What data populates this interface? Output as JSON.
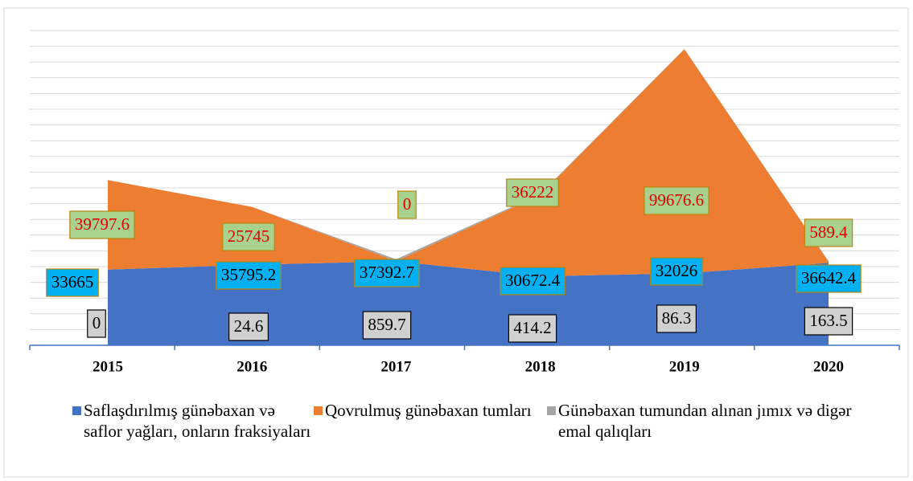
{
  "chart_data": {
    "type": "stacked_area",
    "categories": [
      "2015",
      "2016",
      "2017",
      "2018",
      "2019",
      "2020"
    ],
    "series": [
      {
        "name": "Saflaşdırılmış günəbaxan və saflor yağları, onların fraksiyaları",
        "color": "#4472c4",
        "values": [
          33665,
          35795.2,
          37392.7,
          30672.4,
          32026,
          36642.4
        ]
      },
      {
        "name": "Qovrulmuş günəbaxan tumları",
        "color": "#ed7d31",
        "values": [
          39797.6,
          25745,
          0,
          36222,
          99676.6,
          589.4
        ]
      },
      {
        "name": "Günəbaxan tumundan alınan jımıx və digər emal qalıqları",
        "color": "#a5a5a5",
        "values": [
          0,
          24.6,
          859.7,
          414.2,
          86.3,
          163.5
        ]
      }
    ],
    "ylim": [
      0,
      140000
    ],
    "yticks": [
      0,
      7000,
      14000,
      21000,
      28000,
      35000,
      42000,
      49000,
      56000,
      63000,
      70000,
      77000,
      84000,
      91000,
      98000,
      105000,
      112000,
      119000,
      126000,
      133000,
      140000
    ],
    "grid": true,
    "legend": "bottom"
  }
}
